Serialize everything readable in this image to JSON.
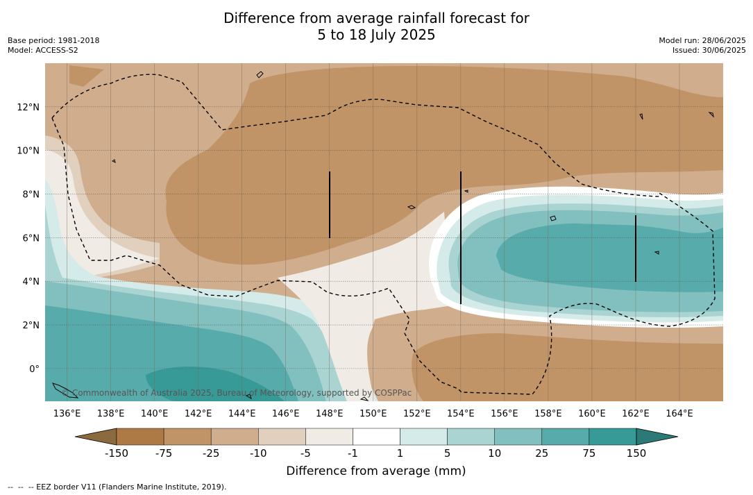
{
  "title": "Difference from average rainfall forecast for\n5 to 18 July 2025",
  "meta_left": {
    "base_period": "Base period: 1981-2018",
    "model": "Model: ACCESS-S2"
  },
  "meta_right": {
    "model_run": "Model run: 28/06/2025",
    "issued": "Issued: 30/06/2025"
  },
  "map": {
    "lon_range": [
      135,
      166
    ],
    "lat_range": [
      -1.5,
      14
    ],
    "x_ticks": [
      {
        "value": 136,
        "label": "136°E"
      },
      {
        "value": 138,
        "label": "138°E"
      },
      {
        "value": 140,
        "label": "140°E"
      },
      {
        "value": 142,
        "label": "142°E"
      },
      {
        "value": 144,
        "label": "144°E"
      },
      {
        "value": 146,
        "label": "146°E"
      },
      {
        "value": 148,
        "label": "148°E"
      },
      {
        "value": 150,
        "label": "150°E"
      },
      {
        "value": 152,
        "label": "152°E"
      },
      {
        "value": 154,
        "label": "154°E"
      },
      {
        "value": 156,
        "label": "156°E"
      },
      {
        "value": 158,
        "label": "158°E"
      },
      {
        "value": 160,
        "label": "160°E"
      },
      {
        "value": 162,
        "label": "162°E"
      },
      {
        "value": 164,
        "label": "164°E"
      }
    ],
    "y_ticks": [
      {
        "value": 12,
        "label": "12°N"
      },
      {
        "value": 10,
        "label": "10°N"
      },
      {
        "value": 8,
        "label": "8°N"
      },
      {
        "value": 6,
        "label": "6°N"
      },
      {
        "value": 4,
        "label": "4°N"
      },
      {
        "value": 2,
        "label": "2°N"
      },
      {
        "value": 0,
        "label": "0°"
      }
    ],
    "copyright": "© Commonwealth of Australia 2025, Bureau of Meteorology, supported by COSPPac"
  },
  "colorbar": {
    "ticks": [
      "-150",
      "-75",
      "-25",
      "-10",
      "-5",
      "-1",
      "1",
      "5",
      "10",
      "25",
      "75",
      "150"
    ],
    "colors": [
      "#8c6a3f",
      "#ad7a45",
      "#c09467",
      "#d0ae8d",
      "#e2d0bf",
      "#f1ebe6",
      "#ffffff",
      "#d5ebe9",
      "#a9d4d2",
      "#82bfbf",
      "#58abab",
      "#379a97",
      "#2b7a78"
    ],
    "label": "Difference from average (mm)"
  },
  "footnote": "--  --  -- EEZ border V11 (Flanders Marine Institute, 2019)."
}
